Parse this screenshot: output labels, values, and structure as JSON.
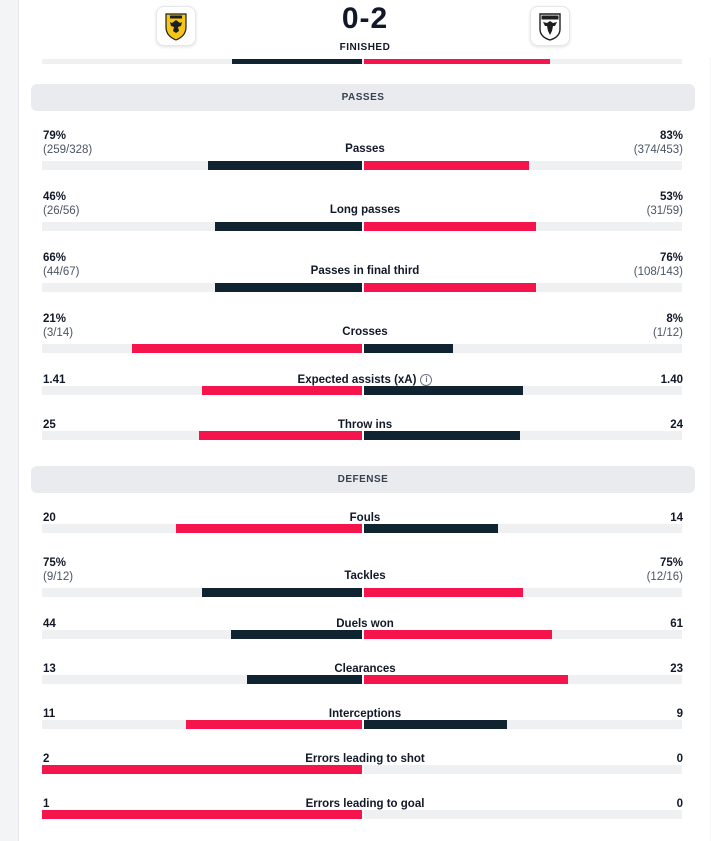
{
  "match": {
    "score": "0-2",
    "status": "FINISHED",
    "home_logo": "aek-crest-icon",
    "away_logo": "paok-crest-icon"
  },
  "colors": {
    "dark": "#0f2430",
    "red": "#f5144b",
    "track": "#eef0f2"
  },
  "sections": {
    "passes": "PASSES",
    "defense": "DEFENSE"
  },
  "passes": [
    {
      "label": "Passes",
      "home": "79%",
      "home_sub": "(259/328)",
      "away": "83%",
      "away_sub": "(374/453)",
      "home_frac": 0.48,
      "away_frac": 0.52,
      "home_color": "dark",
      "away_color": "red"
    },
    {
      "label": "Long passes",
      "home": "46%",
      "home_sub": "(26/56)",
      "away": "53%",
      "away_sub": "(31/59)",
      "home_frac": 0.46,
      "away_frac": 0.54,
      "home_color": "dark",
      "away_color": "red"
    },
    {
      "label": "Passes in final third",
      "home": "66%",
      "home_sub": "(44/67)",
      "away": "76%",
      "away_sub": "(108/143)",
      "home_frac": 0.46,
      "away_frac": 0.54,
      "home_color": "dark",
      "away_color": "red"
    },
    {
      "label": "Crosses",
      "home": "21%",
      "home_sub": "(3/14)",
      "away": "8%",
      "away_sub": "(1/12)",
      "home_frac": 0.72,
      "away_frac": 0.28,
      "home_color": "red",
      "away_color": "dark"
    },
    {
      "label": "Expected assists (xA)",
      "home": "1.41",
      "away": "1.40",
      "home_frac": 0.5,
      "away_frac": 0.5,
      "home_color": "red",
      "away_color": "dark",
      "info": true
    },
    {
      "label": "Throw ins",
      "home": "25",
      "away": "24",
      "home_frac": 0.51,
      "away_frac": 0.49,
      "home_color": "red",
      "away_color": "dark"
    }
  ],
  "defense": [
    {
      "label": "Fouls",
      "home": "20",
      "away": "14",
      "home_frac": 0.58,
      "away_frac": 0.42,
      "home_color": "red",
      "away_color": "dark"
    },
    {
      "label": "Tackles",
      "home": "75%",
      "home_sub": "(9/12)",
      "away": "75%",
      "away_sub": "(12/16)",
      "home_frac": 0.5,
      "away_frac": 0.5,
      "home_color": "dark",
      "away_color": "red"
    },
    {
      "label": "Duels won",
      "home": "44",
      "away": "61",
      "home_frac": 0.41,
      "away_frac": 0.59,
      "home_color": "dark",
      "away_color": "red"
    },
    {
      "label": "Clearances",
      "home": "13",
      "away": "23",
      "home_frac": 0.36,
      "away_frac": 0.64,
      "home_color": "dark",
      "away_color": "red"
    },
    {
      "label": "Interceptions",
      "home": "11",
      "away": "9",
      "home_frac": 0.55,
      "away_frac": 0.45,
      "home_color": "red",
      "away_color": "dark"
    },
    {
      "label": "Errors leading to shot",
      "home": "2",
      "away": "0",
      "home_frac": 1.0,
      "away_frac": 0.0,
      "home_color": "red",
      "away_color": "dark"
    },
    {
      "label": "Errors leading to goal",
      "home": "1",
      "away": "0",
      "home_frac": 1.0,
      "away_frac": 0.0,
      "home_color": "red",
      "away_color": "dark"
    }
  ]
}
